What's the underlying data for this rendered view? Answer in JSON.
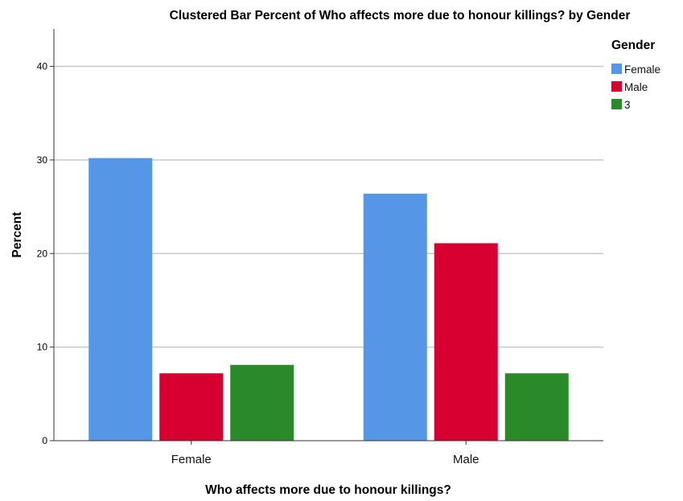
{
  "chart_data": {
    "type": "bar",
    "title": "Clustered Bar Percent of Who affects more due to honour killings? by Gender",
    "xlabel": "Who affects more due to honour killings?",
    "ylabel": "Percent",
    "categories": [
      "Female",
      "Male"
    ],
    "series": [
      {
        "name": "Female",
        "color": "#5596e6",
        "values": [
          30.2,
          26.4
        ]
      },
      {
        "name": "Male",
        "color": "#d5002f",
        "values": [
          7.2,
          21.1
        ]
      },
      {
        "name": "3",
        "color": "#2a8a2a",
        "values": [
          8.1,
          7.2
        ]
      }
    ],
    "ylim": [
      0,
      44
    ],
    "yticks": [
      0,
      10,
      20,
      30,
      40
    ],
    "grid": "horizontal",
    "legend": {
      "title": "Gender",
      "position": "right"
    }
  }
}
